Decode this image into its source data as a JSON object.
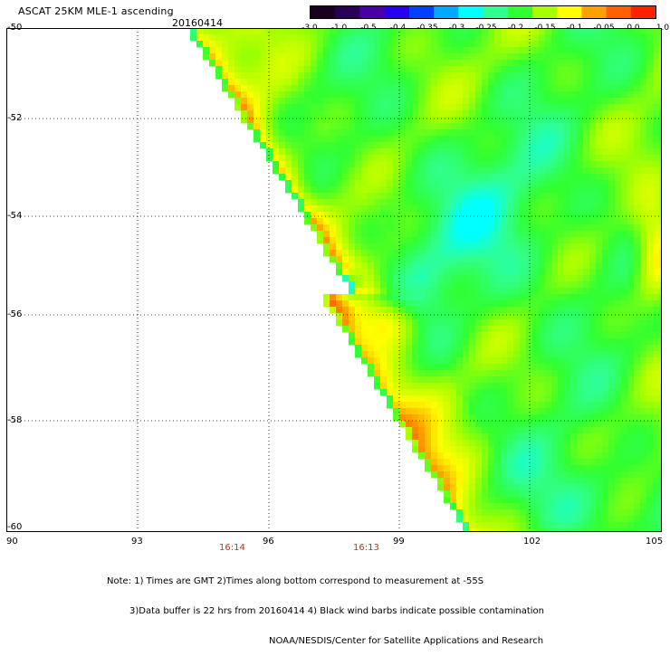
{
  "header": {
    "title": "ASCAT 25KM MLE-1 ascending",
    "date": "20160414"
  },
  "colorbar": {
    "labels": [
      "-3.0",
      "-1.0",
      "-0.5",
      "-0.4",
      "-0.35",
      "-0.3",
      "-0.25",
      "-0.2",
      "-0.15",
      "-0.1",
      "-0.05",
      "0.0",
      "1.0"
    ],
    "colors": [
      "#1a0020",
      "#2a0057",
      "#4a00a8",
      "#2800f0",
      "#0040ff",
      "#00a8ff",
      "#00ffff",
      "#30ff90",
      "#30ff30",
      "#a8ff00",
      "#ffff00",
      "#ffa000",
      "#ff6000",
      "#ff2000"
    ]
  },
  "map": {
    "lat_labels": [
      "-50",
      "-52",
      "-54",
      "-56",
      "-58",
      "-60"
    ],
    "lon_labels": [
      "90",
      "93",
      "96",
      "99",
      "102",
      "105"
    ],
    "time_labels": [
      "16:14",
      "16:13"
    ],
    "lat_range": [
      -60,
      -50
    ],
    "lon_range": [
      90,
      105
    ]
  },
  "notes": [
    "Note: 1) Times are GMT 2)Times along bottom correspond to measurement at -55S",
    "3)Data buffer is 22 hrs from 20160414 4) Black wind barbs indicate possible contamination",
    "NOAA/NESDIS/Center for Satellite Applications and Research"
  ]
}
